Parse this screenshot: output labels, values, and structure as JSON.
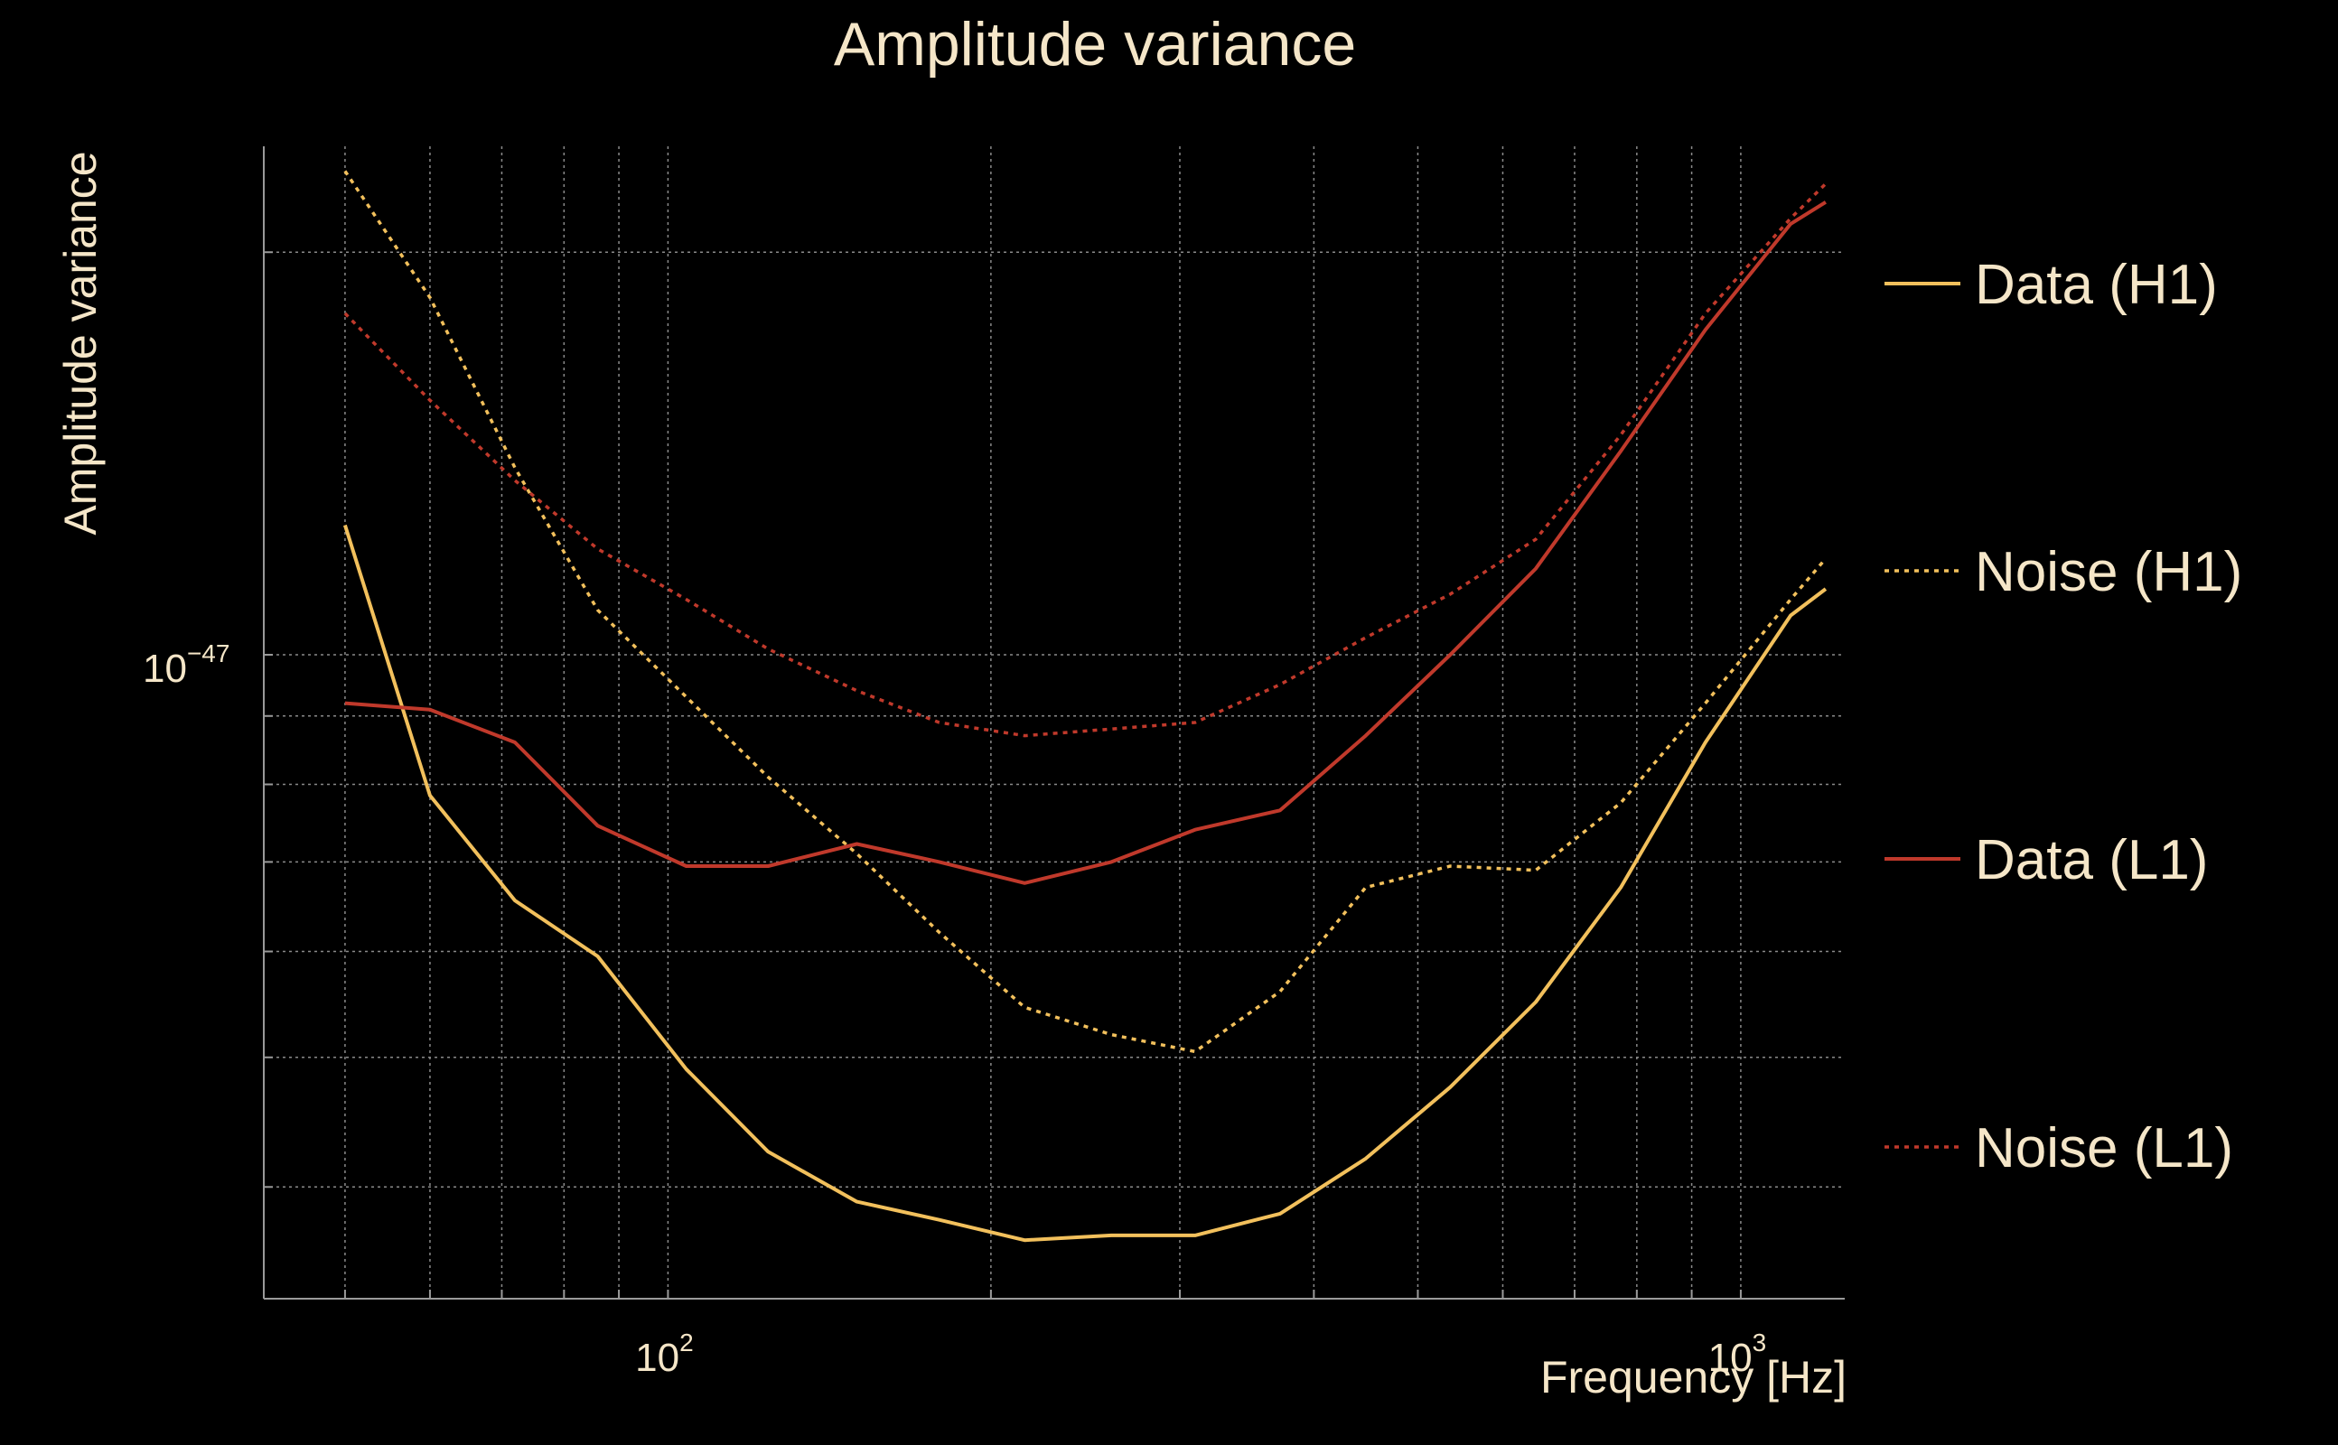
{
  "chart_data": {
    "type": "line",
    "title": "Amplitude variance",
    "xlabel": "Frequency [Hz]",
    "ylabel": "Amplitude variance",
    "x_scale": "log",
    "y_scale": "log",
    "xlim": [
      42,
      1250
    ],
    "ylim": [
      3.3e-48,
      2.4e-47
    ],
    "x_ticks": [
      {
        "value": 100,
        "base": "10",
        "exp": "2"
      },
      {
        "value": 1000,
        "base": "10",
        "exp": "3"
      }
    ],
    "y_ticks": [
      {
        "value": 1e-47,
        "base": "10",
        "exp": "−47"
      }
    ],
    "grid": true,
    "legend_position": "right",
    "x": [
      50,
      60,
      72,
      86,
      104,
      124,
      150,
      179,
      215,
      259,
      310,
      372,
      447,
      536,
      644,
      773,
      927,
      1113,
      1200
    ],
    "series": [
      {
        "name": "Data (H1)",
        "color": "#f2c05c",
        "dash": "solid",
        "values": [
          1.25e-47,
          7.85e-48,
          6.55e-48,
          5.95e-48,
          4.9e-48,
          4.25e-48,
          3.9e-48,
          3.78e-48,
          3.65e-48,
          3.68e-48,
          3.68e-48,
          3.82e-48,
          4.2e-48,
          4.75e-48,
          5.5e-48,
          6.7e-48,
          8.6e-48,
          1.07e-47,
          1.12e-47
        ]
      },
      {
        "name": "Noise (H1)",
        "color": "#f2c05c",
        "dash": "dotted",
        "values": [
          2.3e-47,
          1.85e-47,
          1.38e-47,
          1.08e-47,
          9.3e-48,
          8.1e-48,
          7.1e-48,
          6.2e-48,
          5.45e-48,
          5.2e-48,
          5.05e-48,
          5.6e-48,
          6.7e-48,
          6.95e-48,
          6.9e-48,
          7.75e-48,
          9.2e-48,
          1.1e-47,
          1.18e-47
        ]
      },
      {
        "name": "Data (L1)",
        "color": "#c0392b",
        "dash": "solid",
        "values": [
          9.2e-48,
          9.1e-48,
          8.6e-48,
          7.45e-48,
          6.95e-48,
          6.95e-48,
          7.22e-48,
          7e-48,
          6.75e-48,
          7e-48,
          7.4e-48,
          7.65e-48,
          8.7e-48,
          1e-47,
          1.16e-47,
          1.42e-47,
          1.75e-47,
          2.1e-47,
          2.18e-47
        ]
      },
      {
        "name": "Noise (L1)",
        "color": "#c0392b",
        "dash": "dotted",
        "values": [
          1.8e-47,
          1.55e-47,
          1.35e-47,
          1.2e-47,
          1.1e-47,
          1.01e-47,
          9.4e-48,
          8.9e-48,
          8.7e-48,
          8.8e-48,
          8.9e-48,
          9.5e-48,
          1.03e-47,
          1.11e-47,
          1.22e-47,
          1.46e-47,
          1.8e-47,
          2.12e-47,
          2.25e-47
        ]
      }
    ]
  }
}
